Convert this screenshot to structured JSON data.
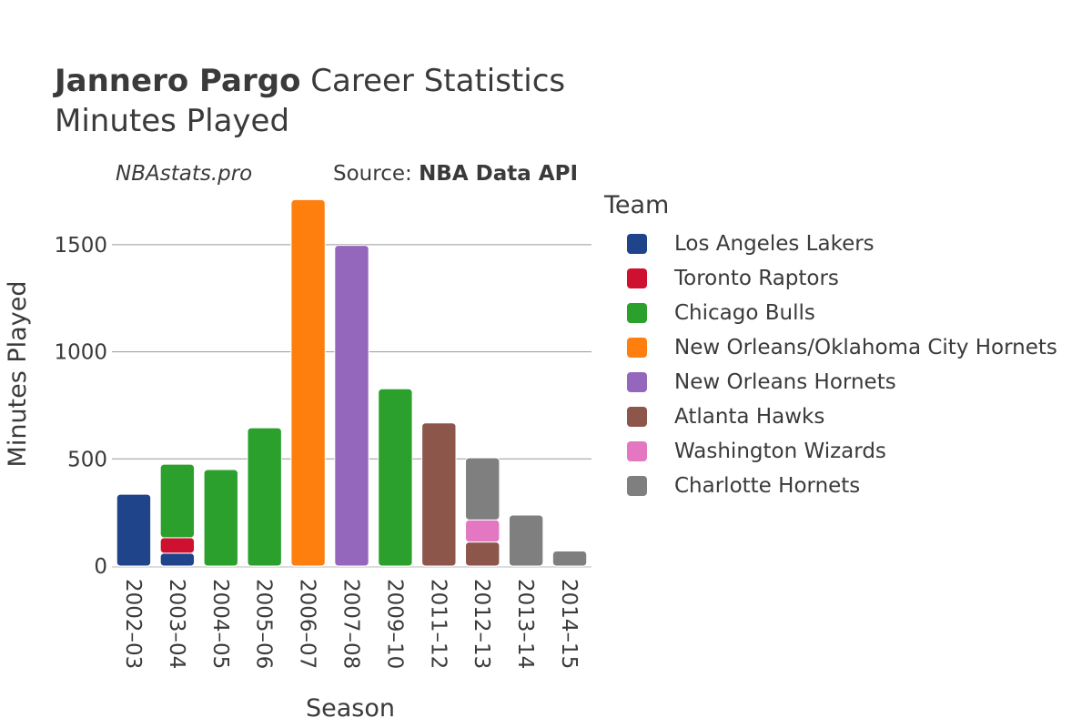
{
  "header": {
    "player_name": "Jannero Pargo",
    "title_rest": "Career Statistics",
    "subtitle": "Minutes Played",
    "credit": "NBAstats.pro",
    "source_prefix": "Source:",
    "source_name": "NBA Data API"
  },
  "legend": {
    "title": "Team",
    "items": [
      {
        "name": "Los Angeles Lakers",
        "color": "#1f4489"
      },
      {
        "name": "Toronto Raptors",
        "color": "#ce1130"
      },
      {
        "name": "Chicago Bulls",
        "color": "#2ca02c"
      },
      {
        "name": "New Orleans/Oklahoma City Hornets",
        "color": "#ff7f0e"
      },
      {
        "name": "New Orleans Hornets",
        "color": "#9467bd"
      },
      {
        "name": "Atlanta Hawks",
        "color": "#8c564b"
      },
      {
        "name": "Washington Wizards",
        "color": "#e377c2"
      },
      {
        "name": "Charlotte Hornets",
        "color": "#7f7f7f"
      }
    ]
  },
  "chart_data": {
    "type": "bar",
    "stacked": true,
    "title": "Jannero Pargo Career Statistics",
    "subtitle": "Minutes Played",
    "xlabel": "Season",
    "ylabel": "Minutes Played",
    "ylim": [
      0,
      1750
    ],
    "yticks": [
      0,
      500,
      1000,
      1500
    ],
    "grid": true,
    "legend_position": "right",
    "categories": [
      "2002–03",
      "2003–04",
      "2004–05",
      "2005–06",
      "2006–07",
      "2007–08",
      "2009–10",
      "2011–12",
      "2012–13",
      "2013–14",
      "2014–15"
    ],
    "series": [
      {
        "name": "Los Angeles Lakers",
        "color": "#1f4489",
        "values": [
          335,
          60,
          0,
          0,
          0,
          0,
          0,
          0,
          0,
          0,
          0
        ]
      },
      {
        "name": "Toronto Raptors",
        "color": "#ce1130",
        "values": [
          0,
          72,
          0,
          0,
          0,
          0,
          0,
          0,
          0,
          0,
          0
        ]
      },
      {
        "name": "Chicago Bulls",
        "color": "#2ca02c",
        "values": [
          0,
          343,
          450,
          645,
          0,
          0,
          827,
          0,
          0,
          0,
          0
        ]
      },
      {
        "name": "New Orleans/Oklahoma City Hornets",
        "color": "#ff7f0e",
        "values": [
          0,
          0,
          0,
          0,
          1710,
          0,
          0,
          0,
          0,
          0,
          0
        ]
      },
      {
        "name": "New Orleans Hornets",
        "color": "#9467bd",
        "values": [
          0,
          0,
          0,
          0,
          0,
          1497,
          0,
          0,
          0,
          0,
          0
        ]
      },
      {
        "name": "Atlanta Hawks",
        "color": "#8c564b",
        "values": [
          0,
          0,
          0,
          0,
          0,
          0,
          0,
          668,
          112,
          0,
          0
        ]
      },
      {
        "name": "Washington Wizards",
        "color": "#e377c2",
        "values": [
          0,
          0,
          0,
          0,
          0,
          0,
          0,
          0,
          103,
          0,
          0
        ]
      },
      {
        "name": "Charlotte Hornets",
        "color": "#7f7f7f",
        "values": [
          0,
          0,
          0,
          0,
          0,
          0,
          0,
          0,
          290,
          238,
          70
        ]
      }
    ]
  }
}
